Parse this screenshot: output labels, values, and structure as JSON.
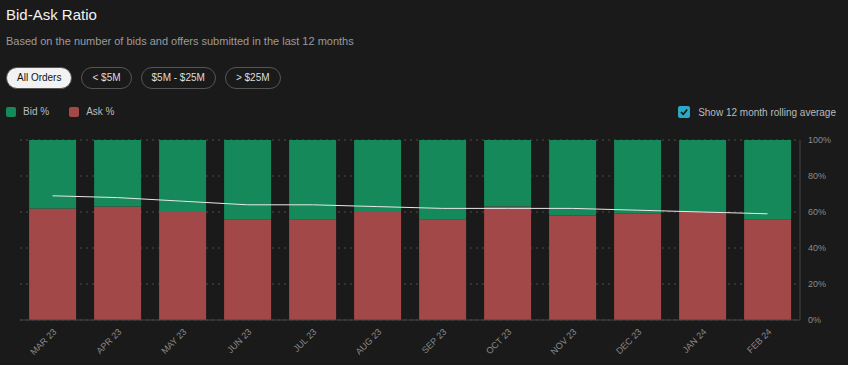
{
  "chart_data": {
    "type": "bar",
    "title": "Bid-Ask Ratio",
    "subtitle": "Based on the number of bids and offers submitted in the last 12 months",
    "filters": [
      "All Orders",
      "< $5M",
      "$5M - $25M",
      "> $25M"
    ],
    "categories": [
      "MAR 23",
      "APR 23",
      "MAY 23",
      "JUN 23",
      "JUL 23",
      "AUG 23",
      "SEP 23",
      "OCT 23",
      "NOV 23",
      "DEC 23",
      "JAN 24",
      "FEB 24"
    ],
    "series": [
      {
        "name": "Ask %",
        "color": "#a34848",
        "values": [
          62,
          63,
          60,
          56,
          56,
          60,
          56,
          63,
          58,
          59,
          60,
          56
        ]
      },
      {
        "name": "Bid %",
        "color": "#15895a",
        "values": [
          38,
          37,
          40,
          44,
          44,
          40,
          44,
          37,
          42,
          41,
          40,
          44
        ]
      },
      {
        "name": "Show 12 month rolling average",
        "type": "line",
        "color": "#e8e8e8",
        "values": [
          69,
          68,
          66,
          64,
          64,
          63,
          62,
          62,
          62,
          61,
          60,
          59
        ]
      }
    ],
    "stacked": true,
    "ylim": [
      0,
      100
    ],
    "yticks": [
      {
        "value": 0,
        "label": "0%"
      },
      {
        "value": 20,
        "label": "20%"
      },
      {
        "value": 40,
        "label": "40%"
      },
      {
        "value": 60,
        "label": "60%"
      },
      {
        "value": 80,
        "label": "80%"
      },
      {
        "value": 100,
        "label": "100%"
      }
    ],
    "grid": true,
    "legend": "top-left"
  }
}
